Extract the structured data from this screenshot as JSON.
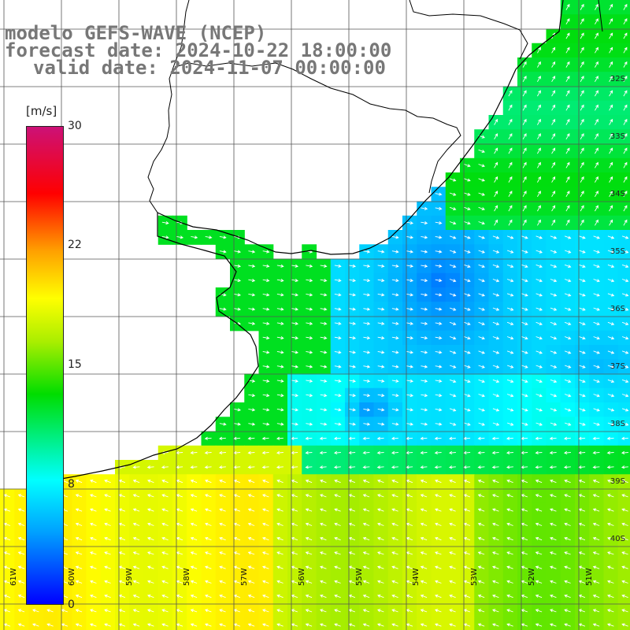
{
  "title": {
    "line1": "modelo GEFS-WAVE (NCEP)",
    "line2": "forecast date: 2024-10-22 18:00:00",
    "line3": "valid date: 2024-11-07 00:00:00"
  },
  "colorbar": {
    "unit": "[m/s]",
    "ticks": [
      "30",
      "22",
      "15",
      "8",
      "0"
    ],
    "colors": [
      "#0000ff",
      "#00a0ff",
      "#00ffff",
      "#00dd00",
      "#aaee00",
      "#ffff00",
      "#ffa000",
      "#ff0000",
      "#cc1177"
    ]
  },
  "axes": {
    "lon_labels": [
      "61W",
      "60W",
      "59W",
      "58W",
      "57W",
      "56W",
      "55W",
      "54W",
      "53W",
      "52W",
      "51W"
    ],
    "lat_labels": [
      "32S",
      "33S",
      "34S",
      "35S",
      "36S",
      "37S",
      "38S",
      "39S",
      "40S"
    ]
  },
  "map": {
    "lon_range": [
      -61,
      -50
    ],
    "lat_range": [
      -41,
      -31
    ],
    "field": "wind speed",
    "units": "m/s",
    "max_value": 30,
    "land_color": "#ffffff",
    "grid_color": "#555555",
    "arrow_color": "#ffffff"
  }
}
